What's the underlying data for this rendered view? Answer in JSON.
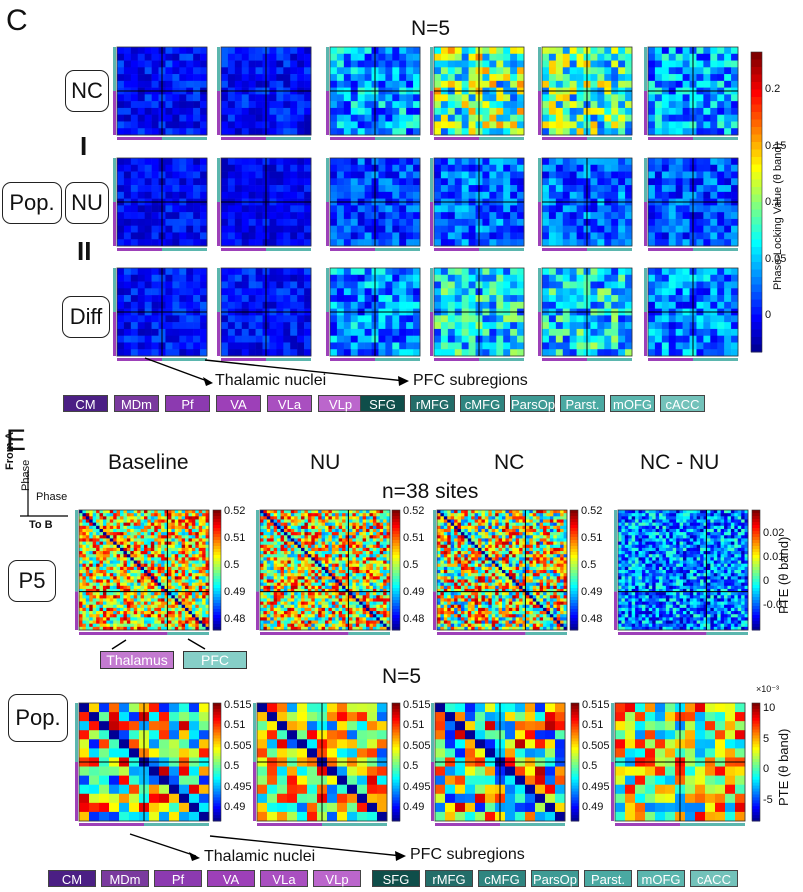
{
  "panel_c": {
    "letter": "C",
    "n_label": "N=5",
    "row_labels": {
      "nc": "NC",
      "nu": "NU",
      "diff": "Diff",
      "pop": "Pop."
    },
    "operators": {
      "minus": "I",
      "equals": "II"
    },
    "colorbar": {
      "title": "Phase-Locking Value (θ band)",
      "ticks": [
        "0.2",
        "0.15",
        "0.1",
        "0.05",
        "0"
      ]
    },
    "annotations": {
      "thalamic": "Thalamic nuclei",
      "pfc": "PFC subregions"
    },
    "legend": {
      "thalamic": [
        "CM",
        "MDm",
        "Pf",
        "VA",
        "VLa",
        "VLp"
      ],
      "pfc": [
        "SFG",
        "rMFG",
        "cMFG",
        "ParsOp",
        "Parst.",
        "mOFG",
        "cACC"
      ]
    }
  },
  "panel_e": {
    "letter": "E",
    "column_titles": [
      "Baseline",
      "NU",
      "NC",
      "NC - NU"
    ],
    "n_sites": "n=38 sites",
    "n_pop": "N=5",
    "axis_key": {
      "from": "From A",
      "phase1": "Phase",
      "phase2": "Phase",
      "to": "To B"
    },
    "row_labels": {
      "p5": "P5",
      "pop": "Pop."
    },
    "groups": {
      "thalamus": "Thalamus",
      "pfc": "PFC"
    },
    "p5_ticks": [
      "0.52",
      "0.51",
      "0.5",
      "0.49",
      "0.48"
    ],
    "p5_diff_ticks": [
      "0.02",
      "0.01",
      "0",
      "-0.01"
    ],
    "pop_ticks": [
      "0.515",
      "0.51",
      "0.505",
      "0.5",
      "0.495",
      "0.49"
    ],
    "pop_diff_ticks": [
      "10",
      "5",
      "0",
      "-5"
    ],
    "pop_diff_exponent": "×10⁻³",
    "pte_title": "PTE (θ band)",
    "annotations": {
      "thalamic": "Thalamic nuclei",
      "pfc": "PFC subregions"
    },
    "legend": {
      "thalamic": [
        "CM",
        "MDm",
        "Pf",
        "VA",
        "VLa",
        "VLp"
      ],
      "pfc": [
        "SFG",
        "rMFG",
        "cMFG",
        "ParsOp",
        "Parst.",
        "mOFG",
        "cACC"
      ]
    }
  },
  "colors": {
    "thalamic_chips": [
      "#4b1f84",
      "#7a3a9e",
      "#8c3ab0",
      "#9d40b8",
      "#a94fc0",
      "#bb66cc"
    ],
    "pfc_chips": [
      "#0f4e4a",
      "#236d69",
      "#2f8580",
      "#3e9a94",
      "#4aa9a2",
      "#5bb6ae",
      "#73c2ba"
    ],
    "thalamus_box": "#c37ad0",
    "pfc_box": "#86cfc8"
  }
}
